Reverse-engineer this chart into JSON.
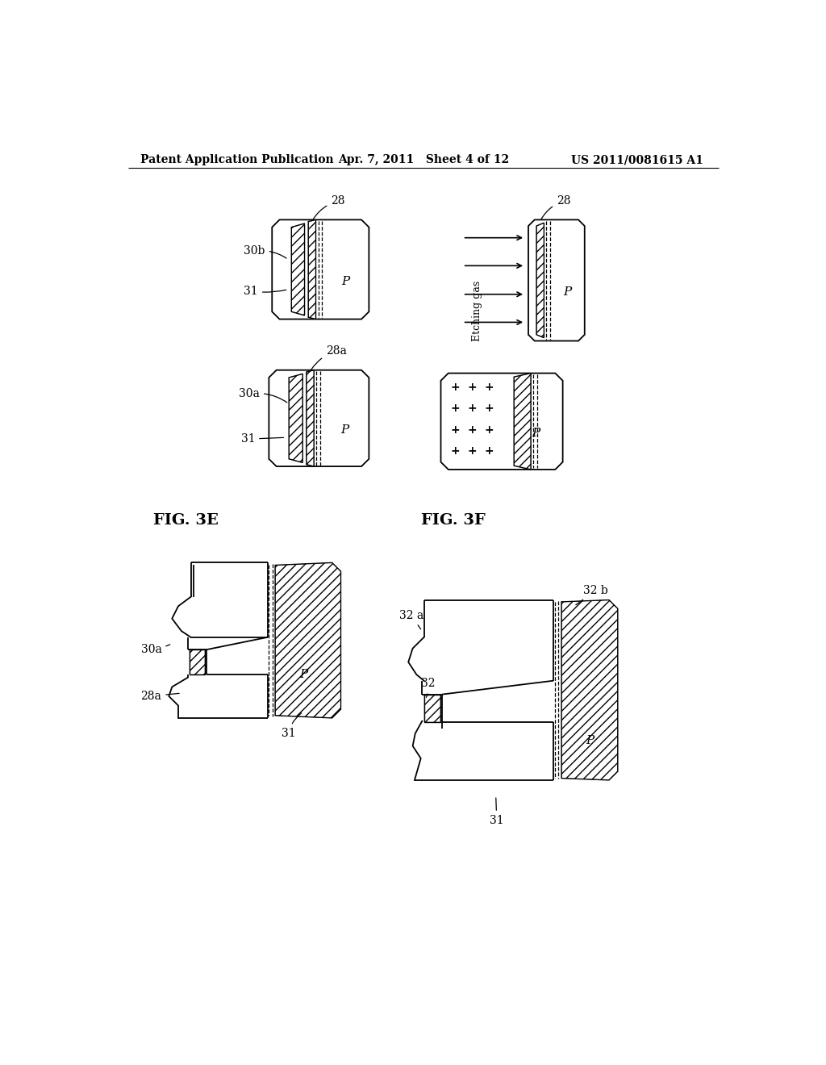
{
  "title_left": "Patent Application Publication",
  "title_mid": "Apr. 7, 2011   Sheet 4 of 12",
  "title_right": "US 2011/0081615 A1",
  "fig_label_3E": "FIG. 3E",
  "fig_label_3F": "FIG. 3F",
  "bg_color": "#ffffff",
  "line_color": "#000000"
}
